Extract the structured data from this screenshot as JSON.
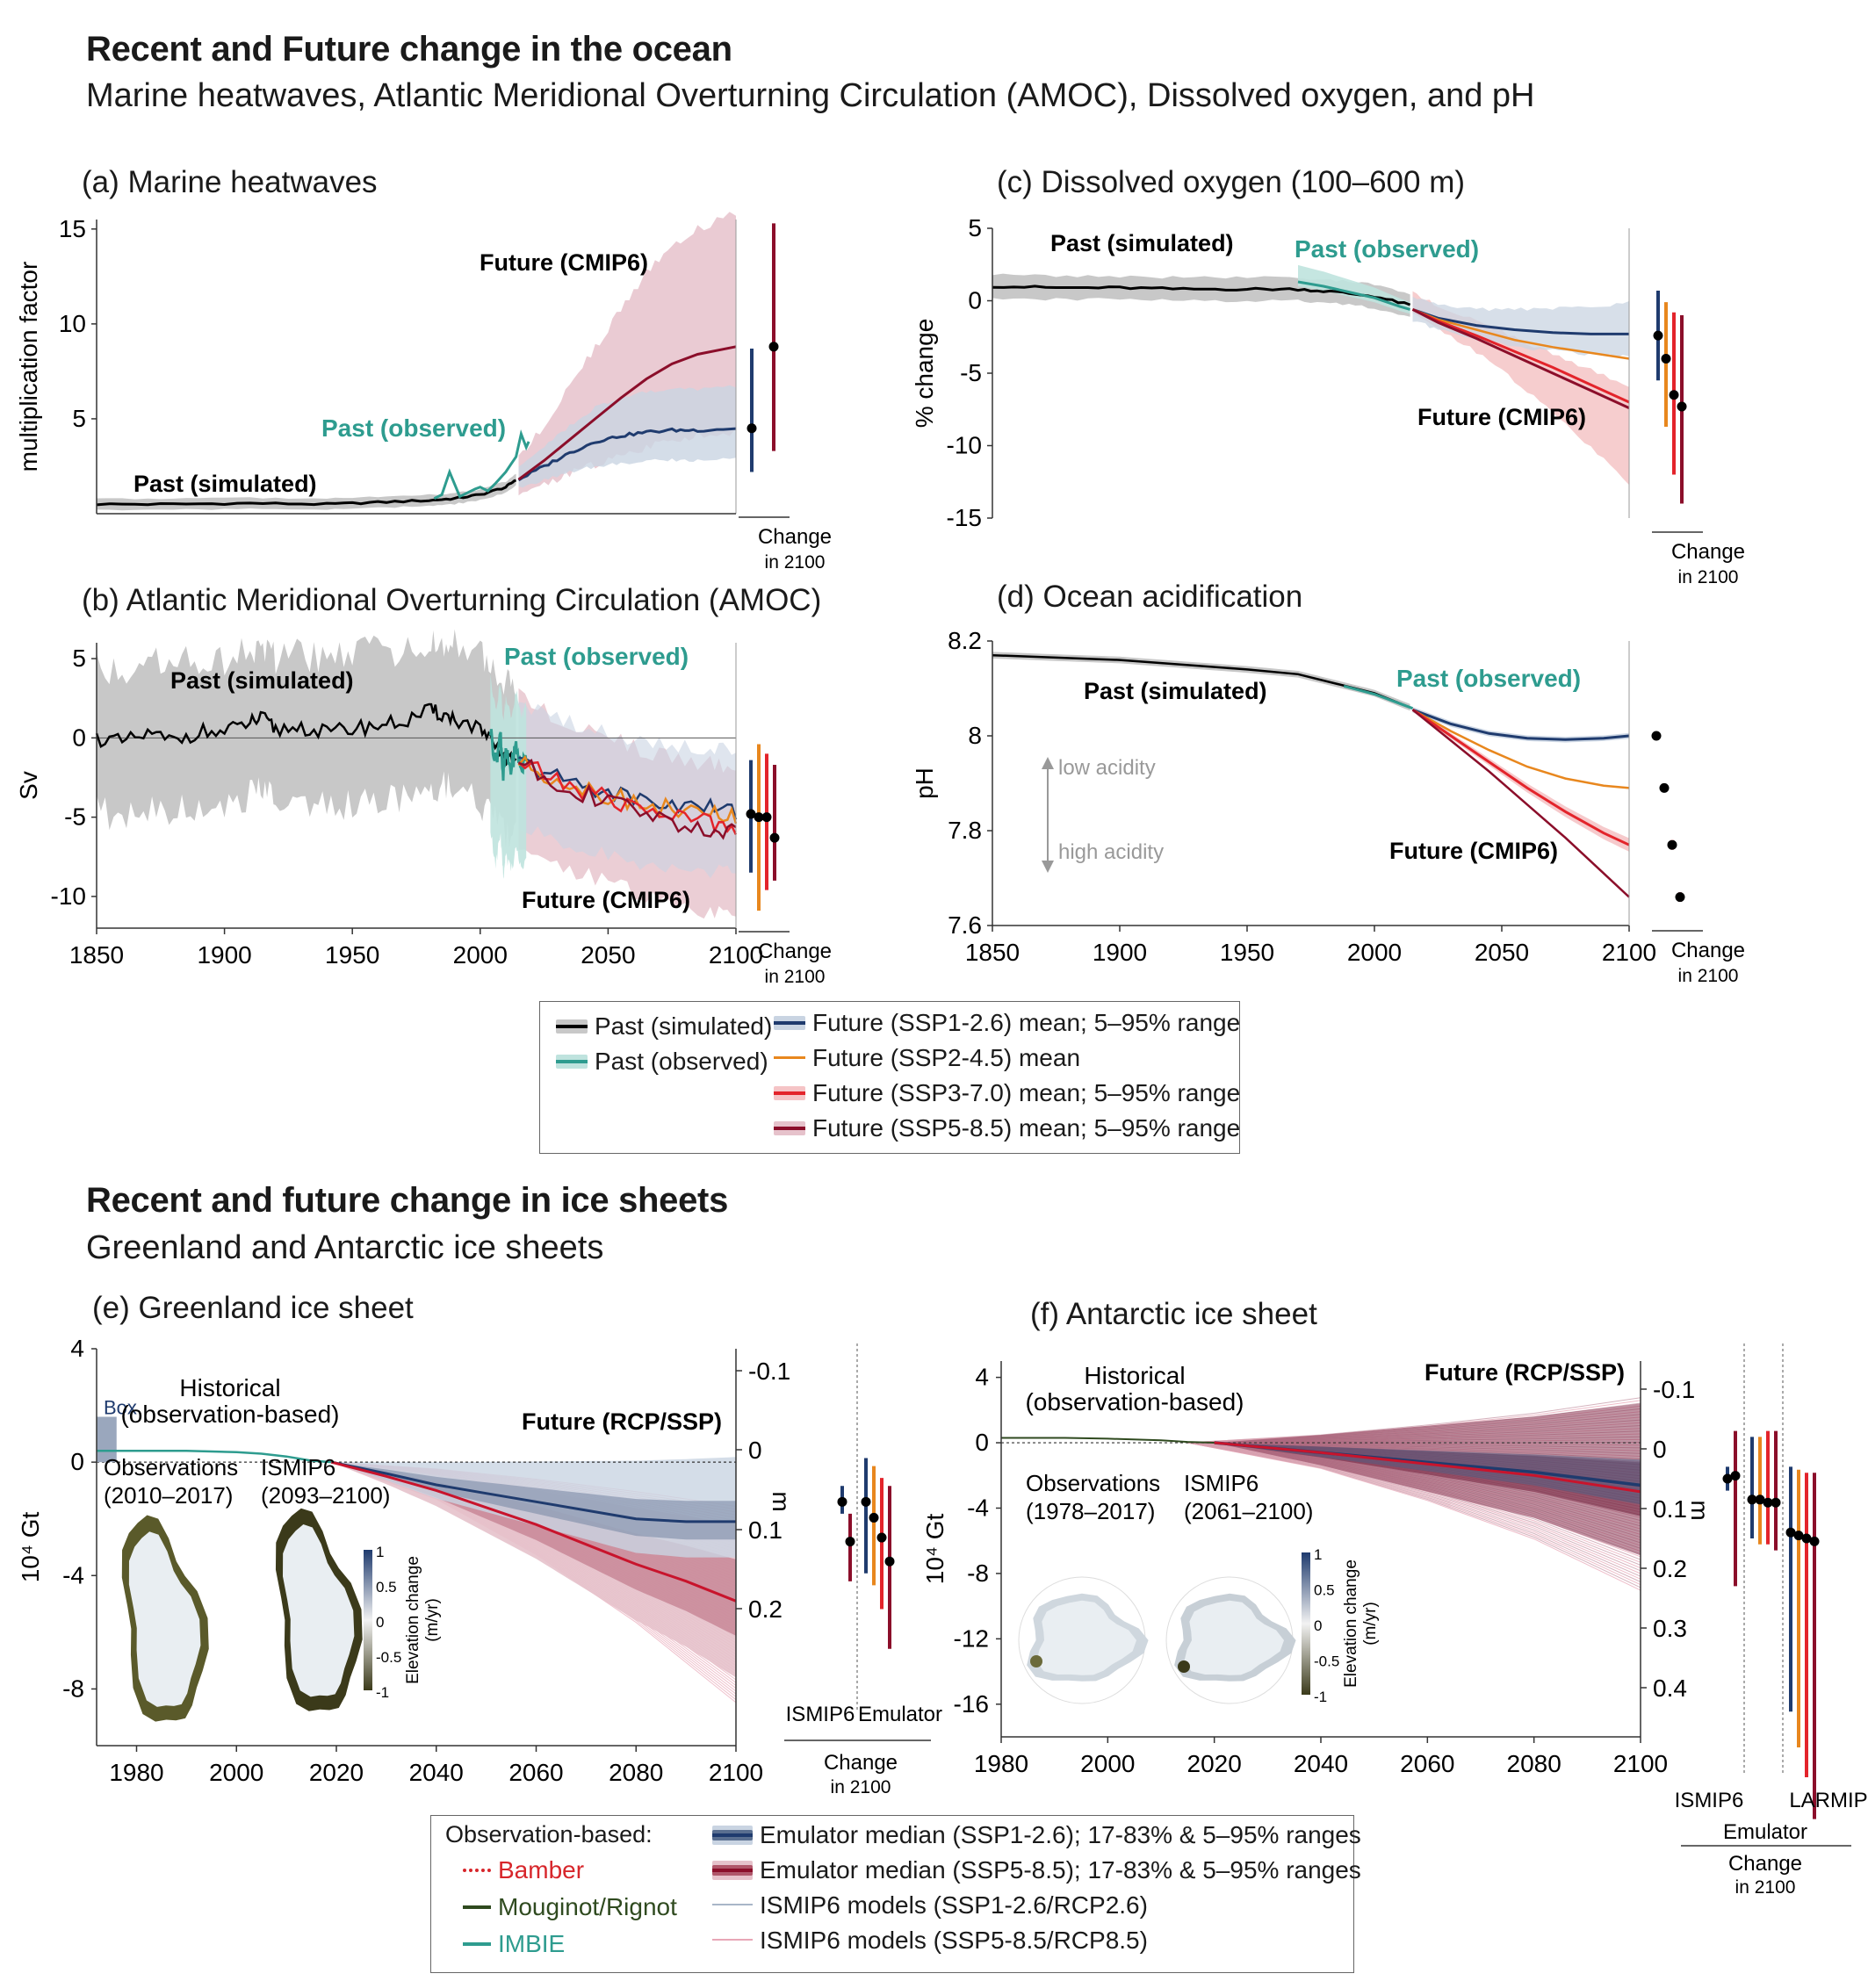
{
  "header1": {
    "title": "Recent and Future change in the ocean",
    "subtitle": "Marine heatwaves, Atlantic Meridional Overturning Circulation (AMOC), Dissolved oxygen, and pH"
  },
  "header2": {
    "title": "Recent and future change in ice sheets",
    "subtitle": "Greenland and Antarctic ice sheets"
  },
  "colors": {
    "past_sim": "#000000",
    "past_sim_band": "#c8c8c8",
    "observed": "#2e9c8f",
    "observed_band": "#bfe3de",
    "ssp126": "#1f3b6e",
    "ssp126_band": "#c9d4e2",
    "ssp245": "#e8871e",
    "ssp370": "#e3242b",
    "ssp370_band": "#f5c4c6",
    "ssp585": "#8b0e2a",
    "ssp585_band": "#e6c2cb"
  },
  "chart_data": [
    {
      "id": "a",
      "type": "line",
      "title": "(a) Marine heatwaves",
      "ylabel": "multiplication factor",
      "yticks": [
        5,
        10,
        15
      ],
      "ylim": [
        0,
        15.5
      ],
      "xlim": [
        1850,
        2100
      ],
      "labels": {
        "past_simulated": "Past (simulated)",
        "past_observed": "Past (observed)",
        "future": "Future (CMIP6)"
      },
      "past_simulated": {
        "x": [
          1850,
          1880,
          1910,
          1940,
          1960,
          1980,
          1990,
          2000,
          2010,
          2014
        ],
        "y": [
          0.5,
          0.5,
          0.55,
          0.5,
          0.6,
          0.7,
          0.8,
          1.0,
          1.4,
          1.8
        ]
      },
      "past_observed": {
        "x": [
          1982,
          1985,
          1988,
          1992,
          1995,
          1998,
          2000,
          2003,
          2006,
          2010,
          2012,
          2014,
          2016,
          2018,
          2019
        ],
        "y": [
          0.8,
          1.0,
          2.2,
          0.9,
          1.1,
          1.3,
          1.4,
          1.2,
          1.6,
          2.2,
          2.6,
          3.0,
          4.2,
          3.5,
          3.8
        ]
      },
      "ssp126": {
        "x": [
          2015,
          2025,
          2035,
          2045,
          2055,
          2065,
          2075,
          2085,
          2100
        ],
        "y": [
          1.8,
          2.5,
          3.2,
          3.8,
          4.1,
          4.3,
          4.4,
          4.4,
          4.5
        ]
      },
      "ssp585": {
        "x": [
          2015,
          2025,
          2035,
          2045,
          2055,
          2065,
          2075,
          2085,
          2100
        ],
        "y": [
          1.8,
          2.8,
          3.9,
          5.0,
          6.1,
          7.1,
          7.9,
          8.4,
          8.8
        ]
      },
      "change_2100": [
        {
          "scenario": "ssp126",
          "median": 4.5,
          "low": 2.2,
          "high": 8.7
        },
        {
          "scenario": "ssp585",
          "median": 8.8,
          "low": 3.3,
          "high": 15.3
        }
      ],
      "change_label": [
        "Change",
        "in 2100"
      ]
    },
    {
      "id": "b",
      "type": "line",
      "title": "(b) Atlantic Meridional Overturning Circulation (AMOC)",
      "ylabel": "Sv",
      "yticks": [
        5,
        0,
        -5,
        -10
      ],
      "ylim": [
        -12,
        6
      ],
      "xlim": [
        1850,
        2100
      ],
      "xticks": [
        1850,
        1900,
        1950,
        2000,
        2050,
        2100
      ],
      "labels": {
        "past_simulated": "Past (simulated)",
        "past_observed": "Past (observed)",
        "future": "Future (CMIP6)"
      },
      "past_simulated": {
        "x": [
          1850,
          1860,
          1870,
          1880,
          1890,
          1900,
          1910,
          1915,
          1920,
          1930,
          1940,
          1950,
          1960,
          1970,
          1980,
          1985,
          1990,
          2000,
          2005,
          2010,
          2014
        ],
        "y": [
          0,
          -0.3,
          0.2,
          -0.2,
          0.4,
          0.3,
          1.0,
          1.2,
          0.5,
          0.7,
          0.3,
          0.6,
          0.8,
          1.0,
          1.7,
          1.5,
          1.2,
          0.5,
          -0.5,
          -1.3,
          -1.5
        ]
      },
      "past_observed": {
        "x": [
          2004,
          2006,
          2008,
          2009,
          2010,
          2012,
          2014,
          2016,
          2018
        ],
        "y": [
          0.5,
          -1.5,
          0.2,
          -2.5,
          -1.0,
          -2.0,
          -0.5,
          -2.0,
          -1.2
        ]
      },
      "ssp126": {
        "x": [
          2015,
          2030,
          2045,
          2060,
          2075,
          2090,
          2100
        ],
        "y": [
          -1.5,
          -2.5,
          -3.2,
          -3.8,
          -4.2,
          -4.4,
          -4.6
        ]
      },
      "ssp245": {
        "x": [
          2015,
          2030,
          2045,
          2060,
          2075,
          2090,
          2100
        ],
        "y": [
          -1.5,
          -2.6,
          -3.4,
          -4.0,
          -4.5,
          -4.8,
          -5.0
        ]
      },
      "ssp370": {
        "x": [
          2015,
          2030,
          2045,
          2060,
          2075,
          2090,
          2100
        ],
        "y": [
          -1.5,
          -2.7,
          -3.6,
          -4.3,
          -4.9,
          -5.3,
          -5.5
        ]
      },
      "ssp585": {
        "x": [
          2015,
          2030,
          2045,
          2060,
          2075,
          2090,
          2100
        ],
        "y": [
          -1.5,
          -2.8,
          -3.8,
          -4.6,
          -5.3,
          -5.8,
          -6.1
        ]
      },
      "change_2100": [
        {
          "scenario": "ssp126",
          "median": -4.8,
          "low": -8.5,
          "high": -1.4
        },
        {
          "scenario": "ssp245",
          "median": -5.0,
          "low": -10.9,
          "high": -0.4
        },
        {
          "scenario": "ssp370",
          "median": -5.0,
          "low": -9.6,
          "high": -1.0
        },
        {
          "scenario": "ssp585",
          "median": -6.3,
          "low": -9.0,
          "high": -1.7
        }
      ],
      "change_label": [
        "Change",
        "in 2100"
      ]
    },
    {
      "id": "c",
      "type": "line",
      "title": "(c) Dissolved oxygen (100–600 m)",
      "ylabel": "% change",
      "yticks": [
        5,
        0,
        -5,
        -10,
        -15
      ],
      "ylim": [
        -15,
        5
      ],
      "xlim": [
        1850,
        2100
      ],
      "labels": {
        "past_simulated": "Past (simulated)",
        "past_observed": "Past (observed)",
        "future": "Future (CMIP6)"
      },
      "past_simulated": {
        "x": [
          1850,
          1875,
          1900,
          1925,
          1950,
          1970,
          1985,
          2000,
          2014
        ],
        "y": [
          1.0,
          0.9,
          0.9,
          0.8,
          0.8,
          0.8,
          0.6,
          0.3,
          -0.3
        ]
      },
      "past_observed": {
        "x": [
          1970,
          1980,
          1990,
          2000,
          2010,
          2014
        ],
        "y": [
          1.3,
          1.0,
          0.6,
          0.2,
          -0.4,
          -0.6
        ]
      },
      "ssp126": {
        "x": [
          2015,
          2025,
          2040,
          2055,
          2070,
          2085,
          2100
        ],
        "y": [
          -0.6,
          -1.2,
          -1.7,
          -2.0,
          -2.2,
          -2.3,
          -2.3
        ]
      },
      "ssp245": {
        "x": [
          2015,
          2025,
          2040,
          2055,
          2070,
          2085,
          2100
        ],
        "y": [
          -0.6,
          -1.3,
          -2.0,
          -2.7,
          -3.2,
          -3.6,
          -4.0
        ]
      },
      "ssp370": {
        "x": [
          2015,
          2025,
          2040,
          2055,
          2070,
          2085,
          2100
        ],
        "y": [
          -0.6,
          -1.4,
          -2.4,
          -3.5,
          -4.6,
          -5.8,
          -7.0
        ]
      },
      "ssp585": {
        "x": [
          2015,
          2025,
          2040,
          2055,
          2070,
          2085,
          2100
        ],
        "y": [
          -0.6,
          -1.5,
          -2.6,
          -3.8,
          -5.0,
          -6.2,
          -7.4
        ]
      },
      "change_2100": [
        {
          "scenario": "ssp126",
          "median": -2.4,
          "low": -5.5,
          "high": 0.7
        },
        {
          "scenario": "ssp245",
          "median": -4.0,
          "low": -8.7,
          "high": -0.1
        },
        {
          "scenario": "ssp370",
          "median": -6.5,
          "low": -12.0,
          "high": -0.8
        },
        {
          "scenario": "ssp585",
          "median": -7.3,
          "low": -14.0,
          "high": -1.0
        }
      ],
      "change_label": [
        "Change",
        "in 2100"
      ]
    },
    {
      "id": "d",
      "type": "line",
      "title": "(d) Ocean acidification",
      "ylabel": "pH",
      "yticks": [
        8.2,
        8,
        7.8,
        7.6
      ],
      "yticklabels": [
        "8.2",
        "8",
        "7.8",
        "7.6"
      ],
      "ylim": [
        7.6,
        8.2
      ],
      "xlim": [
        1850,
        2100
      ],
      "xticks": [
        1850,
        1900,
        1950,
        2000,
        2050,
        2100
      ],
      "labels": {
        "past_simulated": "Past (simulated)",
        "past_observed": "Past (observed)",
        "future": "Future (CMIP6)",
        "low_acidity": "low acidity",
        "high_acidity": "high acidity"
      },
      "past_simulated": {
        "x": [
          1850,
          1875,
          1900,
          1925,
          1950,
          1970,
          1985,
          2000,
          2014
        ],
        "y": [
          8.17,
          8.165,
          8.16,
          8.15,
          8.14,
          8.13,
          8.11,
          8.09,
          8.06
        ]
      },
      "past_observed": {
        "x": [
          1988,
          1995,
          2000,
          2005,
          2010,
          2015
        ],
        "y": [
          8.105,
          8.095,
          8.088,
          8.078,
          8.068,
          8.058
        ]
      },
      "ssp126": {
        "x": [
          2015,
          2030,
          2045,
          2060,
          2075,
          2090,
          2100
        ],
        "y": [
          8.055,
          8.025,
          8.005,
          7.995,
          7.992,
          7.995,
          8.0
        ]
      },
      "ssp245": {
        "x": [
          2015,
          2030,
          2045,
          2060,
          2075,
          2090,
          2100
        ],
        "y": [
          8.055,
          8.01,
          7.97,
          7.935,
          7.91,
          7.895,
          7.89
        ]
      },
      "ssp370": {
        "x": [
          2015,
          2030,
          2045,
          2060,
          2075,
          2090,
          2100
        ],
        "y": [
          8.055,
          8.0,
          7.945,
          7.89,
          7.84,
          7.795,
          7.77
        ]
      },
      "ssp585": {
        "x": [
          2015,
          2030,
          2045,
          2060,
          2075,
          2090,
          2100
        ],
        "y": [
          8.055,
          7.99,
          7.925,
          7.855,
          7.785,
          7.71,
          7.66
        ]
      },
      "change_2100": [
        {
          "scenario": "ssp126",
          "median": 8.0,
          "low": 7.995,
          "high": 8.005
        },
        {
          "scenario": "ssp245",
          "median": 7.89,
          "low": 7.885,
          "high": 7.895
        },
        {
          "scenario": "ssp370",
          "median": 7.77,
          "low": 7.76,
          "high": 7.78
        },
        {
          "scenario": "ssp585",
          "median": 7.66,
          "low": 7.65,
          "high": 7.67
        }
      ],
      "change_label": [
        "Change",
        "in 2100"
      ]
    },
    {
      "id": "e",
      "type": "line",
      "title": "(e) Greenland ice sheet",
      "ylabel": "10⁴ Gt",
      "y2label": "m",
      "yticks": [
        4,
        0,
        -4,
        -8
      ],
      "y2ticks": [
        "-0.1",
        "0",
        "0.1",
        "0.2"
      ],
      "ylim": [
        -10,
        4
      ],
      "xlim": [
        1972,
        2100
      ],
      "xticks": [
        1980,
        2000,
        2020,
        2040,
        2060,
        2080,
        2100
      ],
      "labels": {
        "historical": "Historical\n(observation-based)",
        "box": "Box",
        "future": "Future (RCP/SSP)",
        "obs_map": "Observations\n(2010–2017)",
        "model_map": "ISMIP6\n(2093–2100)",
        "colorbar": "Elevation change\n(m/yr)"
      },
      "colorbar_ticks": [
        "1",
        "0.5",
        "0",
        "-0.5",
        "-1"
      ],
      "historical": {
        "x": [
          1972,
          1990,
          2000,
          2005,
          2010,
          2015,
          2019
        ],
        "y": [
          0.4,
          0.4,
          0.35,
          0.3,
          0.2,
          0.05,
          0
        ]
      },
      "ssp126": {
        "x": [
          2019,
          2030,
          2040,
          2050,
          2060,
          2070,
          2080,
          2090,
          2100
        ],
        "y": [
          0,
          -0.4,
          -0.8,
          -1.1,
          -1.4,
          -1.7,
          -2.0,
          -2.1,
          -2.1
        ]
      },
      "ssp585": {
        "x": [
          2019,
          2030,
          2040,
          2050,
          2060,
          2070,
          2080,
          2090,
          2100
        ],
        "y": [
          0,
          -0.5,
          -1.0,
          -1.6,
          -2.2,
          -2.9,
          -3.6,
          -4.2,
          -4.9
        ]
      },
      "change_2100": [
        {
          "group": "ISMIP6",
          "scenario": "ssp126",
          "median": 0.065,
          "low": 0.045,
          "high": 0.08
        },
        {
          "group": "ISMIP6",
          "scenario": "ssp585",
          "median": 0.115,
          "low": 0.08,
          "high": 0.165
        },
        {
          "group": "Emulator",
          "scenario": "ssp126",
          "median": 0.065,
          "low": 0.01,
          "high": 0.155
        },
        {
          "group": "Emulator",
          "scenario": "ssp245",
          "median": 0.085,
          "low": 0.02,
          "high": 0.17
        },
        {
          "group": "Emulator",
          "scenario": "ssp370",
          "median": 0.11,
          "low": 0.035,
          "high": 0.2
        },
        {
          "group": "Emulator",
          "scenario": "ssp585",
          "median": 0.14,
          "low": 0.045,
          "high": 0.25
        }
      ],
      "groups": [
        "ISMIP6",
        "Emulator"
      ],
      "change_label": [
        "Change",
        "in 2100"
      ]
    },
    {
      "id": "f",
      "type": "line",
      "title": "(f) Antarctic ice sheet",
      "ylabel": "10⁴ Gt",
      "y2label": "m",
      "yticks": [
        4,
        0,
        -4,
        -8,
        -12,
        -16
      ],
      "y2ticks": [
        "-0.1",
        "0",
        "0.1",
        "0.2",
        "0.3",
        "0.4"
      ],
      "ylim": [
        -18,
        5
      ],
      "xlim": [
        1980,
        2100
      ],
      "xticks": [
        1980,
        2000,
        2020,
        2040,
        2060,
        2080,
        2100
      ],
      "labels": {
        "historical": "Historical\n(observation-based)",
        "future": "Future (RCP/SSP)",
        "obs_map": "Observations\n(1978–2017)",
        "model_map": "ISMIP6\n(2061–2100)",
        "colorbar": "Elevation change\n(m/yr)"
      },
      "colorbar_ticks": [
        "1",
        "0.5",
        "0",
        "-0.5",
        "-1"
      ],
      "historical": {
        "x": [
          1980,
          1992,
          2000,
          2010,
          2015,
          2020
        ],
        "y": [
          0.3,
          0.3,
          0.25,
          0.15,
          0.05,
          0
        ]
      },
      "ssp126": {
        "x": [
          2020,
          2040,
          2060,
          2080,
          2100
        ],
        "y": [
          0,
          -0.6,
          -1.2,
          -1.8,
          -2.6
        ]
      },
      "ssp585": {
        "x": [
          2020,
          2040,
          2060,
          2080,
          2100
        ],
        "y": [
          0,
          -0.6,
          -1.3,
          -2.0,
          -3.0
        ]
      },
      "change_2100": [
        {
          "group": "ISMIP6",
          "scenario": "ssp126",
          "median": 0.05,
          "low": 0.03,
          "high": 0.07
        },
        {
          "group": "ISMIP6",
          "scenario": "ssp585",
          "median": 0.045,
          "low": -0.03,
          "high": 0.23
        },
        {
          "group": "Emulator",
          "scenario": "ssp126",
          "median": 0.085,
          "low": -0.02,
          "high": 0.15
        },
        {
          "group": "Emulator",
          "scenario": "ssp245",
          "median": 0.085,
          "low": -0.02,
          "high": 0.16
        },
        {
          "group": "Emulator",
          "scenario": "ssp370",
          "median": 0.09,
          "low": -0.03,
          "high": 0.16
        },
        {
          "group": "Emulator",
          "scenario": "ssp585",
          "median": 0.09,
          "low": -0.03,
          "high": 0.17
        },
        {
          "group": "LARMIP",
          "scenario": "ssp126",
          "median": 0.14,
          "low": 0.03,
          "high": 0.44
        },
        {
          "group": "LARMIP",
          "scenario": "ssp245",
          "median": 0.145,
          "low": 0.035,
          "high": 0.5
        },
        {
          "group": "LARMIP",
          "scenario": "ssp370",
          "median": 0.15,
          "low": 0.04,
          "high": 0.55
        },
        {
          "group": "LARMIP",
          "scenario": "ssp585",
          "median": 0.155,
          "low": 0.04,
          "high": 0.62
        }
      ],
      "groups": [
        "ISMIP6",
        "LARMIP"
      ],
      "group_label": "Emulator",
      "change_label": [
        "Change",
        "in 2100"
      ]
    }
  ],
  "legend1": {
    "past_simulated": "Past (simulated)",
    "past_observed": "Past (observed)",
    "ssp126": "Future (SSP1-2.6) mean; 5–95% range",
    "ssp245": "Future (SSP2-4.5) mean",
    "ssp370": "Future (SSP3-7.0) mean; 5–95% range",
    "ssp585": "Future (SSP5-8.5) mean; 5–95% range"
  },
  "legend2": {
    "heading": "Observation-based:",
    "bamber": "Bamber",
    "mouginot": "Mouginot/Rignot",
    "imbie": "IMBIE",
    "emu126": "Emulator median (SSP1-2.6); 17-83% & 5–95% ranges",
    "emu585": "Emulator median (SSP5-8.5); 17-83% & 5–95% ranges",
    "ismip126": "ISMIP6 models  (SSP1-2.6/RCP2.6)",
    "ismip585": "ISMIP6 models  (SSP5-8.5/RCP8.5)"
  }
}
